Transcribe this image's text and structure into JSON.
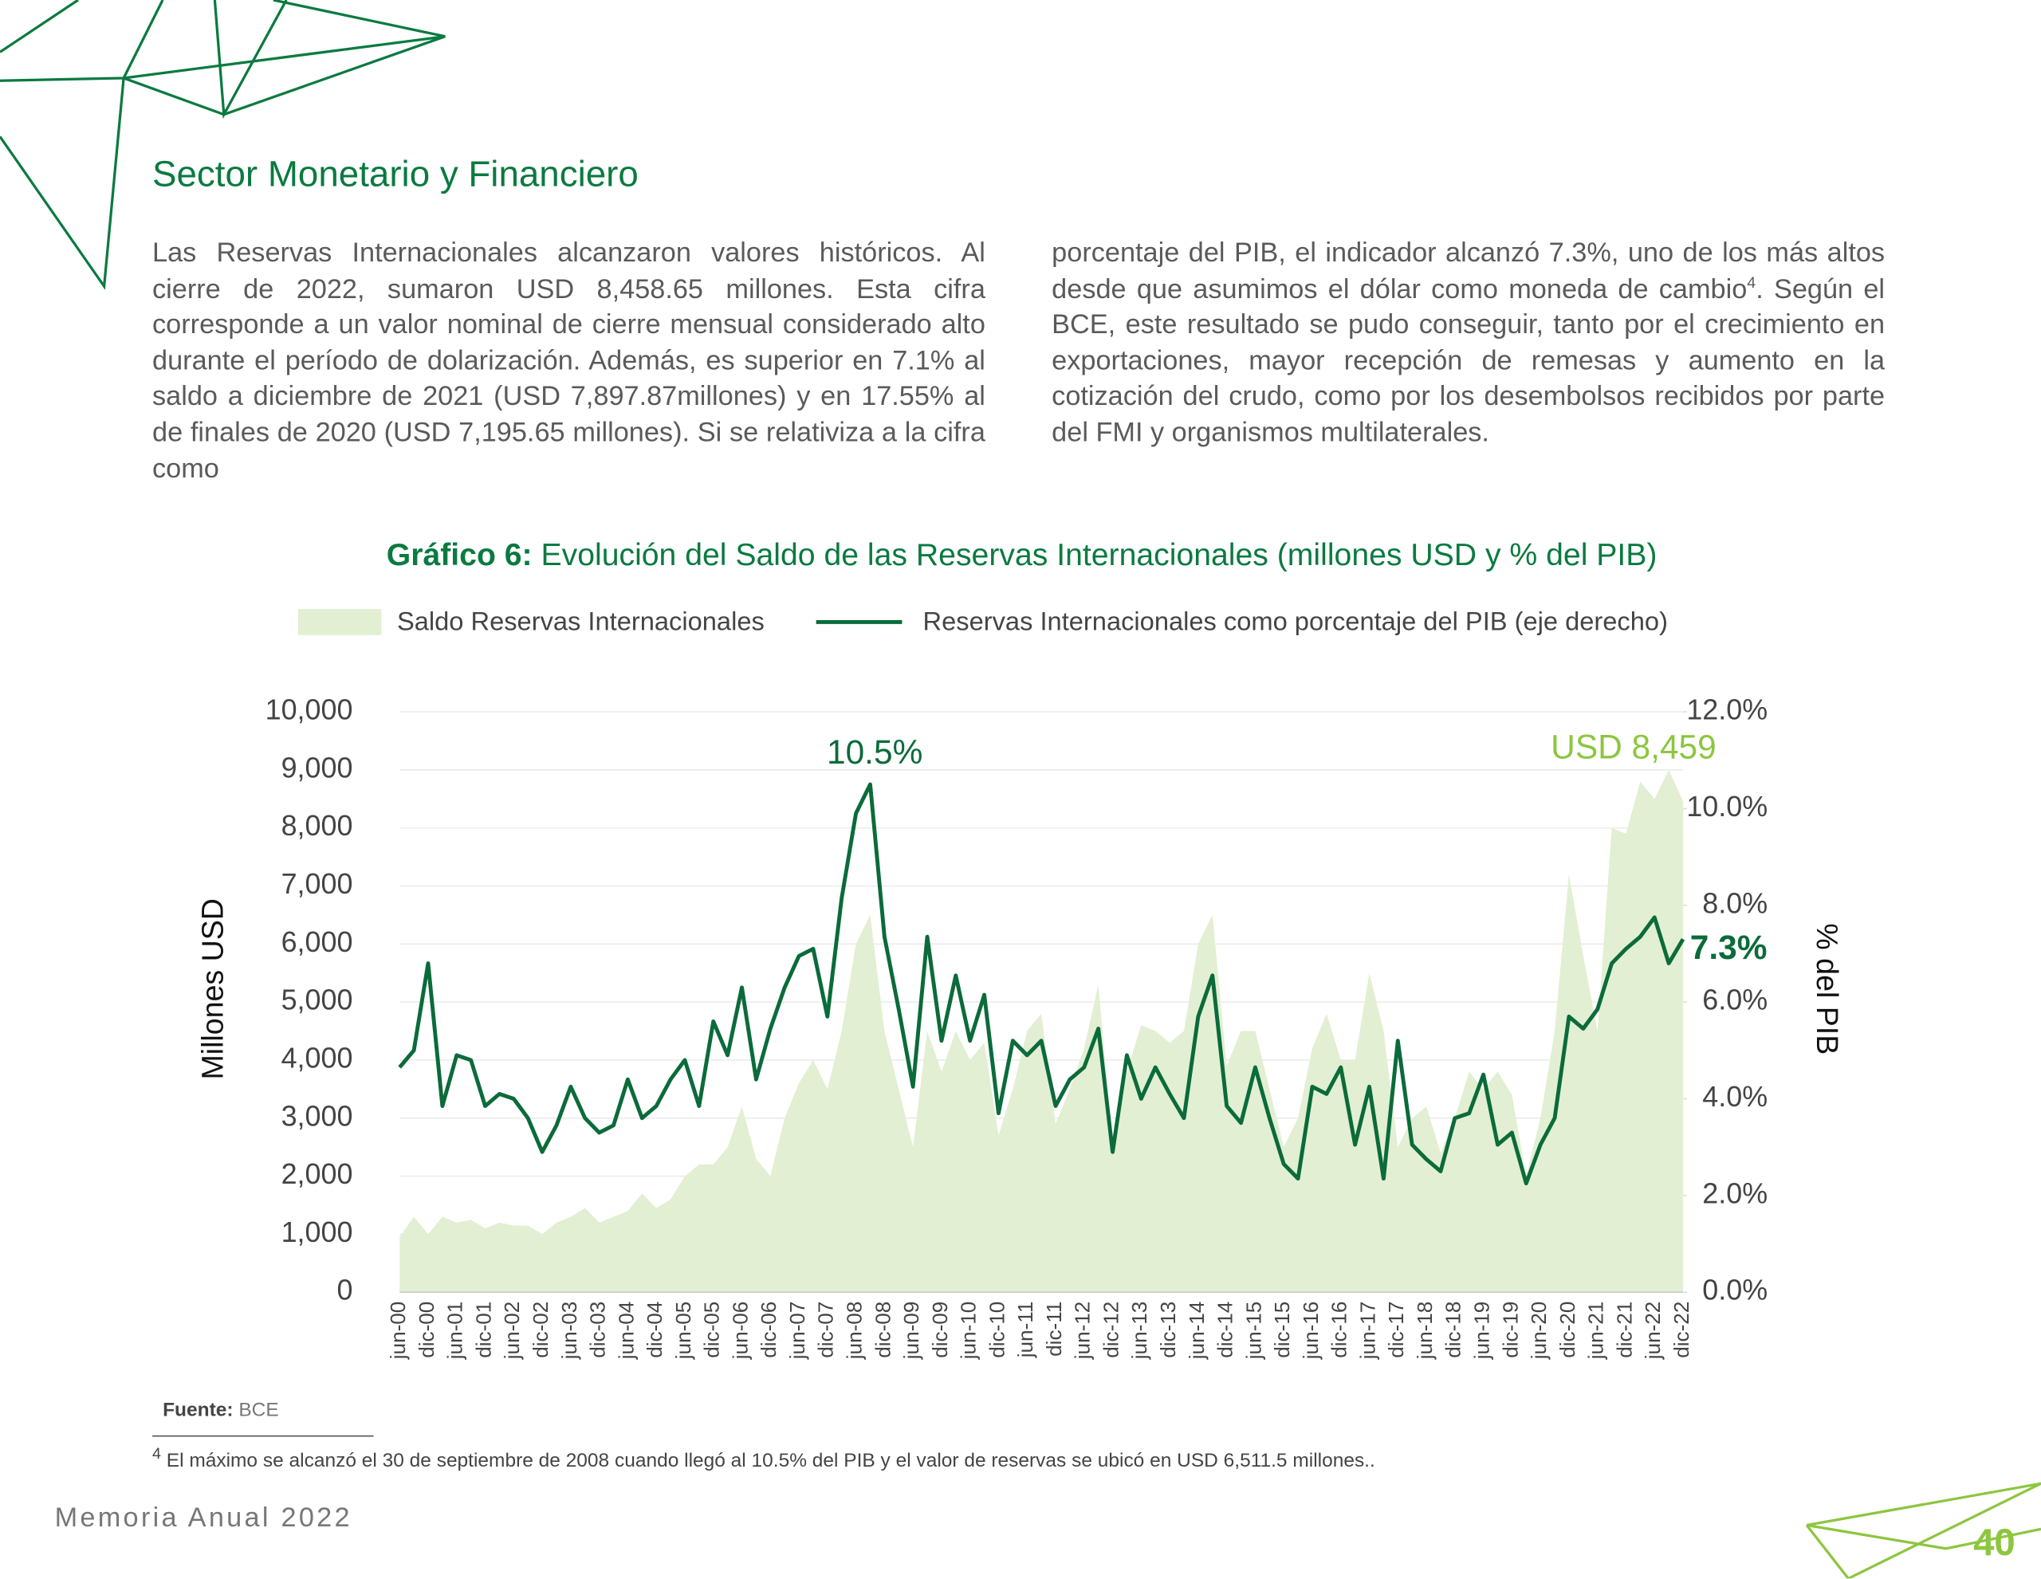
{
  "header": {
    "title": "Sector Monetario y Financiero"
  },
  "paragraph": {
    "col1": "Las Reservas Internacionales alcanzaron valores históricos. Al cierre de 2022, sumaron USD 8,458.65 millones. Esta cifra corresponde a un valor nominal de cierre mensual considerado alto durante el período de dolarización. Además, es superior en 7.1% al saldo a diciembre de 2021 (USD 7,897.87millones) y en 17.55% al de finales de 2020 (USD 7,195.65 millones). Si se relativiza a la cifra como",
    "col2_a": "porcentaje del PIB, el indicador alcanzó 7.3%, uno de los más altos desde que asumimos el dólar como moneda de cambio",
    "col2_sup": "4",
    "col2_b": ". Según el BCE, este resultado se pudo conseguir, tanto por el crecimiento en exportaciones, mayor recepción de remesas y aumento en la cotización del crudo, como por los desembolsos recibidos por parte del FMI y organismos multilaterales."
  },
  "chart_data": {
    "type": "combo",
    "title_prefix": "Gráfico 6:",
    "title": "Evolución del Saldo de las Reservas Internacionales (millones USD y % del PIB)",
    "ylabel": "Millones USD",
    "y2label": "% del PIB",
    "annotations": [
      "10.5%",
      "USD 8,459",
      "7.3%"
    ],
    "categories": [
      "jun-00",
      null,
      "dic-00",
      null,
      "jun-01",
      null,
      "dic-01",
      null,
      "jun-02",
      null,
      "dic-02",
      null,
      "jun-03",
      null,
      "dic-03",
      null,
      "jun-04",
      null,
      "dic-04",
      null,
      "jun-05",
      null,
      "dic-05",
      null,
      "jun-06",
      null,
      "dic-06",
      null,
      "jun-07",
      null,
      "dic-07",
      null,
      "jun-08",
      null,
      "dic-08",
      null,
      "jun-09",
      null,
      "dic-09",
      null,
      "jun-10",
      null,
      "dic-10",
      null,
      "jun-11",
      null,
      "dic-11",
      null,
      "jun-12",
      null,
      "dic-12",
      null,
      "jun-13",
      null,
      "dic-13",
      null,
      "jun-14",
      null,
      "dic-14",
      null,
      "jun-15",
      null,
      "dic-15",
      null,
      "jun-16",
      null,
      "dic-16",
      null,
      "jun-17",
      null,
      "dic-17",
      null,
      "jun-18",
      null,
      "dic-18",
      null,
      "jun-19",
      null,
      "dic-19",
      null,
      "jun-20",
      null,
      "dic-20",
      null,
      "jun-21",
      null,
      "dic-21",
      null,
      "jun-22",
      null,
      "dic-22"
    ],
    "series": [
      {
        "name": "Saldo Reservas Internacionales",
        "type": "area",
        "axis": "y",
        "color": "#e2efd2",
        "values": [
          950,
          1300,
          1000,
          1300,
          1200,
          1250,
          1100,
          1200,
          1150,
          1150,
          1000,
          1200,
          1300,
          1450,
          1200,
          1300,
          1400,
          1700,
          1450,
          1600,
          2000,
          2200,
          2200,
          2500,
          3200,
          2300,
          2000,
          3000,
          3600,
          4000,
          3500,
          4500,
          6000,
          6500,
          4500,
          3500,
          2500,
          4500,
          3800,
          4500,
          4000,
          4300,
          2700,
          3500,
          4500,
          4800,
          2900,
          3500,
          4200,
          5300,
          2500,
          3800,
          4600,
          4500,
          4300,
          4500,
          6000,
          6500,
          3900,
          4500,
          4500,
          3500,
          2500,
          3000,
          4200,
          4800,
          4000,
          4000,
          5500,
          4500,
          2500,
          3000,
          3200,
          2400,
          3000,
          3800,
          3500,
          3800,
          3400,
          2000,
          3000,
          4500,
          7200,
          5800,
          4500,
          8000,
          7900,
          8800,
          8500,
          9000,
          8459
        ]
      },
      {
        "name": "Reservas Internacionales como porcentaje del PIB (eje derecho)",
        "type": "line",
        "axis": "y2",
        "color": "#0b6b3a",
        "values": [
          4.65,
          5.0,
          6.8,
          3.85,
          4.9,
          4.8,
          3.85,
          4.1,
          4.0,
          3.6,
          2.9,
          3.45,
          4.25,
          3.6,
          3.3,
          3.45,
          4.4,
          3.6,
          3.85,
          4.4,
          4.8,
          3.85,
          5.6,
          4.9,
          6.3,
          4.4,
          5.45,
          6.3,
          6.95,
          7.1,
          5.7,
          8.15,
          9.9,
          10.5,
          7.35,
          5.85,
          4.25,
          7.35,
          5.2,
          6.55,
          5.2,
          6.15,
          3.7,
          5.2,
          4.9,
          5.2,
          3.85,
          4.4,
          4.65,
          5.45,
          2.9,
          4.9,
          4.0,
          4.65,
          4.1,
          3.6,
          5.7,
          6.55,
          3.85,
          3.5,
          4.65,
          3.6,
          2.65,
          2.35,
          4.25,
          4.1,
          4.65,
          3.05,
          4.25,
          2.35,
          5.2,
          3.05,
          2.75,
          2.5,
          3.6,
          3.7,
          4.5,
          3.05,
          3.3,
          2.25,
          3.05,
          3.6,
          5.7,
          5.45,
          5.85,
          6.8,
          7.1,
          7.35,
          7.75,
          6.8,
          7.3
        ]
      }
    ],
    "ylim": [
      0,
      10000
    ],
    "yticks": [
      0,
      {
        "value": 1000,
        "label": "1,000"
      },
      {
        "value": 2000,
        "label": "2,000"
      },
      {
        "value": 3000,
        "label": "3,000"
      },
      {
        "value": 4000,
        "label": "4,000"
      },
      {
        "value": 5000,
        "label": "5,000"
      },
      {
        "value": 6000,
        "label": "6,000"
      },
      {
        "value": 7000,
        "label": "7,000"
      },
      {
        "value": 8000,
        "label": "8,000"
      },
      {
        "value": 9000,
        "label": "9,000"
      },
      {
        "value": 10000,
        "label": "10,000"
      }
    ],
    "y2lim": [
      0,
      12
    ],
    "y2ticks": [
      {
        "value": 0,
        "label": "0.0%"
      },
      {
        "value": 2,
        "label": "2.0%"
      },
      {
        "value": 4,
        "label": "4.0%"
      },
      {
        "value": 6,
        "label": "6.0%"
      },
      {
        "value": 8,
        "label": "8.0%"
      },
      {
        "value": 10,
        "label": "10.0%"
      },
      {
        "value": 12,
        "label": "12.0%"
      }
    ],
    "grid": true
  },
  "source": {
    "label": "Fuente:",
    "text": "BCE"
  },
  "footnote": {
    "mark": "4",
    "text": "El máximo se alcanzó el 30 de septiembre de 2008 cuando llegó al 10.5% del PIB y el valor de reservas se ubicó en USD 6,511.5 millones.."
  },
  "footer": {
    "text": "Memoria Anual 2022",
    "page": "40"
  }
}
